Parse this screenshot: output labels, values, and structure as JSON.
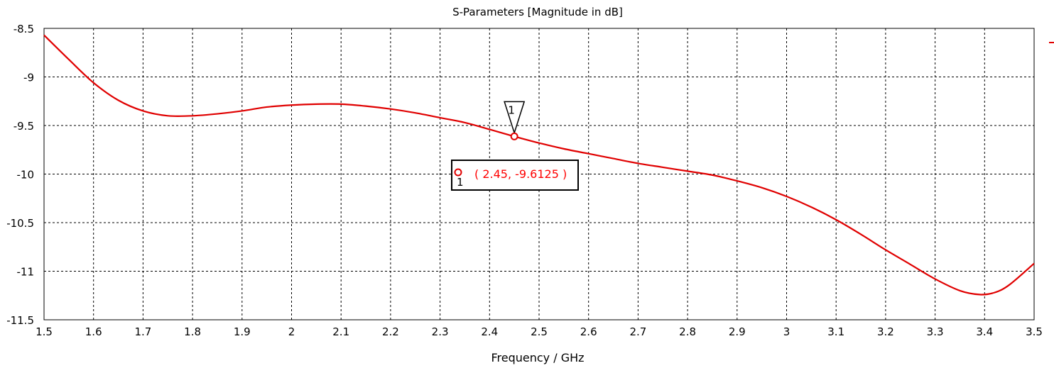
{
  "chart_data": {
    "type": "line",
    "title": "S-Parameters [Magnitude in dB]",
    "xlabel": "Frequency / GHz",
    "ylabel": "",
    "xlim": [
      1.5,
      3.5
    ],
    "ylim": [
      -11.5,
      -8.5
    ],
    "x_ticks": [
      1.5,
      1.6,
      1.7,
      1.8,
      1.9,
      2,
      2.1,
      2.2,
      2.3,
      2.4,
      2.5,
      2.6,
      2.7,
      2.8,
      2.9,
      3,
      3.1,
      3.2,
      3.3,
      3.4,
      3.5
    ],
    "y_ticks": [
      -8.5,
      -9,
      -9.5,
      -10,
      -10.5,
      -11,
      -11.5
    ],
    "grid": true,
    "series": [
      {
        "color": "#e00000",
        "x": [
          1.5,
          1.55,
          1.6,
          1.65,
          1.7,
          1.75,
          1.8,
          1.85,
          1.9,
          1.95,
          2.0,
          2.05,
          2.1,
          2.15,
          2.2,
          2.25,
          2.3,
          2.35,
          2.4,
          2.45,
          2.5,
          2.55,
          2.6,
          2.65,
          2.7,
          2.75,
          2.8,
          2.85,
          2.9,
          2.95,
          3.0,
          3.05,
          3.1,
          3.15,
          3.2,
          3.25,
          3.3,
          3.35,
          3.39,
          3.42,
          3.45,
          3.5
        ],
        "y": [
          -8.57,
          -8.82,
          -9.06,
          -9.24,
          -9.35,
          -9.4,
          -9.4,
          -9.38,
          -9.35,
          -9.31,
          -9.29,
          -9.28,
          -9.28,
          -9.3,
          -9.33,
          -9.37,
          -9.42,
          -9.47,
          -9.54,
          -9.6125,
          -9.68,
          -9.74,
          -9.79,
          -9.84,
          -9.89,
          -9.93,
          -9.97,
          -10.01,
          -10.07,
          -10.14,
          -10.23,
          -10.34,
          -10.47,
          -10.62,
          -10.78,
          -10.93,
          -11.08,
          -11.2,
          -11.24,
          -11.22,
          -11.14,
          -10.92
        ]
      }
    ],
    "markers": [
      {
        "id": "1",
        "x": 2.45,
        "y": -9.6125,
        "label": "( 2.45, -9.6125 )"
      }
    ]
  }
}
